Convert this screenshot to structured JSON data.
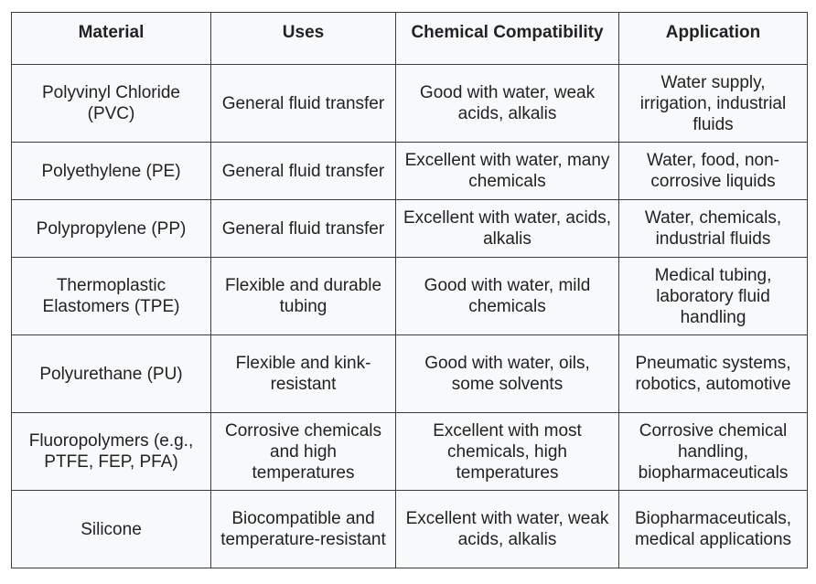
{
  "table": {
    "headers": [
      "Material",
      "Uses",
      "Chemical Compatibility",
      "Application"
    ],
    "rows": [
      [
        "Polyvinyl Chloride (PVC)",
        "General fluid transfer",
        "Good with water, weak acids, alkalis",
        "Water supply, irrigation, industrial fluids"
      ],
      [
        "Polyethylene (PE)",
        "General fluid transfer",
        "Excellent with water, many chemicals",
        "Water, food, non-corrosive liquids"
      ],
      [
        "Polypropylene (PP)",
        "General fluid transfer",
        "Excellent with water, acids, alkalis",
        "Water, chemicals, industrial fluids"
      ],
      [
        "Thermoplastic Elastomers (TPE)",
        "Flexible and durable tubing",
        "Good with water, mild chemicals",
        "Medical tubing, laboratory fluid handling"
      ],
      [
        "Polyurethane (PU)",
        "Flexible and kink-resistant",
        "Good with water, oils, some solvents",
        "Pneumatic systems, robotics, automotive"
      ],
      [
        "Fluoropolymers (e.g., PTFE, FEP, PFA)",
        "Corrosive chemicals and high temperatures",
        "Excellent with most chemicals, high temperatures",
        "Corrosive chemical handling, biopharmaceuticals"
      ],
      [
        "Silicone",
        "Biocompatible and temperature-resistant",
        "Excellent with water, weak acids, alkalis",
        "Biopharmaceuticals, medical applications"
      ]
    ]
  }
}
